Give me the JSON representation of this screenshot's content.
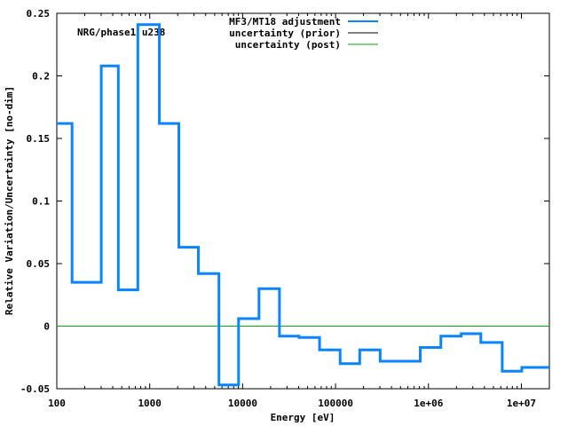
{
  "chart_data": {
    "type": "line",
    "step": true,
    "title": "NRG/phase1 u238",
    "xlabel": "Energy [eV]",
    "ylabel": "Relative Variation/Uncertainty [no-dim]",
    "xscale": "log",
    "xlim": [
      100,
      20000000
    ],
    "ylim": [
      -0.05,
      0.25
    ],
    "xticks": [
      {
        "v": 100,
        "label": "100"
      },
      {
        "v": 1000,
        "label": "1000"
      },
      {
        "v": 10000,
        "label": "10000"
      },
      {
        "v": 100000,
        "label": "100000"
      },
      {
        "v": 1000000,
        "label": "1e+06"
      },
      {
        "v": 10000000,
        "label": "1e+07"
      }
    ],
    "yticks": [
      {
        "v": -0.05,
        "label": "-0.05"
      },
      {
        "v": 0,
        "label": "0"
      },
      {
        "v": 0.05,
        "label": "0.05"
      },
      {
        "v": 0.1,
        "label": "0.1"
      },
      {
        "v": 0.15,
        "label": "0.15"
      },
      {
        "v": 0.2,
        "label": "0.2"
      },
      {
        "v": 0.25,
        "label": "0.25"
      }
    ],
    "legend_position": "top-right",
    "series": [
      {
        "name": "MF3/MT18 adjustment",
        "color": "#0a84ff",
        "edges": [
          100,
          146,
          301,
          459,
          745,
          1270,
          2060,
          3340,
          5560,
          9040,
          15000,
          24900,
          40500,
          67300,
          112000,
          182000,
          302000,
          816000,
          1360000,
          2250000,
          3660000,
          6220000,
          10100000,
          20000000
        ],
        "values": [
          0.162,
          0.035,
          0.208,
          0.029,
          0.241,
          0.162,
          0.063,
          0.042,
          -0.047,
          0.006,
          0.03,
          -0.008,
          -0.009,
          -0.019,
          -0.03,
          -0.019,
          -0.028,
          -0.017,
          -0.008,
          -0.006,
          -0.013,
          -0.036,
          -0.033
        ]
      },
      {
        "name": "uncertainty (prior)",
        "color": "#000000",
        "constant": 0
      },
      {
        "name": "uncertainty (post)",
        "color": "#00b000",
        "constant": 0
      }
    ]
  }
}
